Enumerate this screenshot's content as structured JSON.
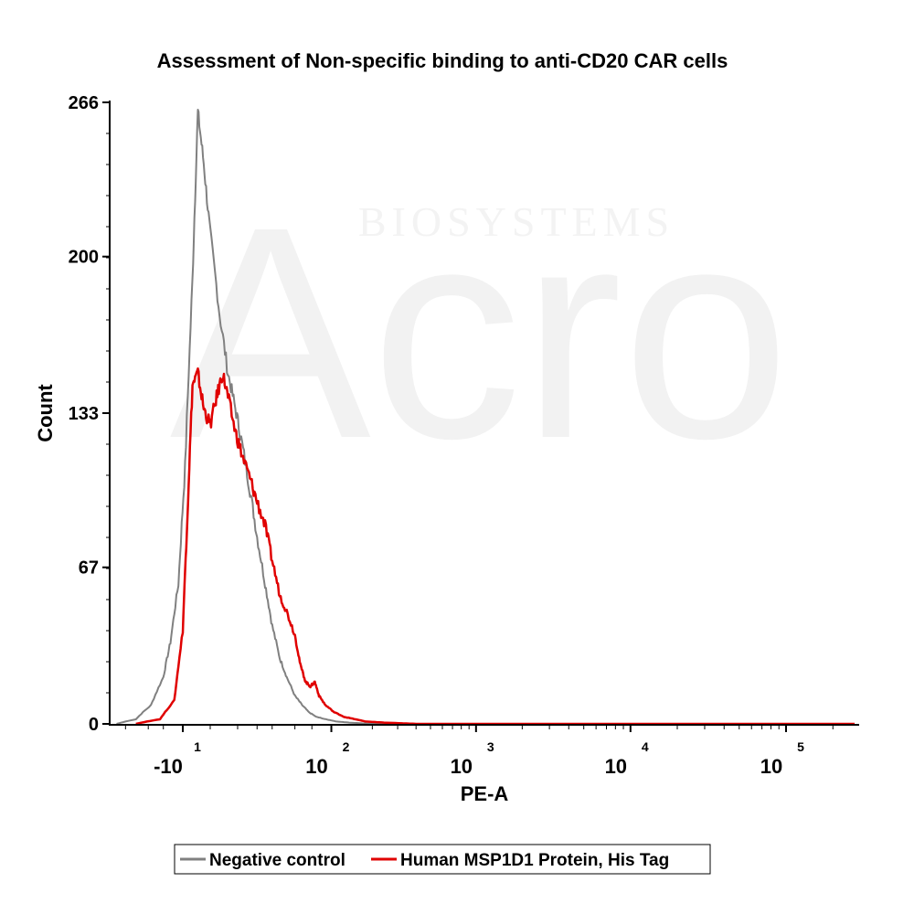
{
  "chart_data": {
    "type": "line",
    "title": "Assessment of Non-specific binding to anti-CD20 CAR cells",
    "xlabel": "PE-A",
    "ylabel": "Count",
    "x_scale": "biexponential",
    "ylim": [
      0,
      266
    ],
    "yticks": [
      {
        "value": 0,
        "label": "0"
      },
      {
        "value": 67,
        "label": "67"
      },
      {
        "value": 133,
        "label": "133"
      },
      {
        "value": 200,
        "label": "200"
      },
      {
        "value": 266,
        "label": "266"
      }
    ],
    "xticks": [
      {
        "value": -10,
        "base": "-10",
        "exp": "1"
      },
      {
        "value": 100,
        "base": "10",
        "exp": "2"
      },
      {
        "value": 1000,
        "base": "10",
        "exp": "3"
      },
      {
        "value": 10000,
        "base": "10",
        "exp": "4"
      },
      {
        "value": 100000,
        "base": "10",
        "exp": "5"
      }
    ],
    "grid": false,
    "legend_position": "bottom",
    "series": [
      {
        "name": "Negative control",
        "color": "#808080",
        "points": [
          [
            -60,
            0
          ],
          [
            -40,
            2
          ],
          [
            -28,
            8
          ],
          [
            -20,
            20
          ],
          [
            -16,
            35
          ],
          [
            -12,
            60
          ],
          [
            -9,
            110
          ],
          [
            -6,
            190
          ],
          [
            -4,
            262
          ],
          [
            -2,
            240
          ],
          [
            0,
            210
          ],
          [
            3,
            175
          ],
          [
            6,
            150
          ],
          [
            9,
            135
          ],
          [
            12,
            120
          ],
          [
            16,
            100
          ],
          [
            20,
            80
          ],
          [
            25,
            60
          ],
          [
            30,
            42
          ],
          [
            36,
            28
          ],
          [
            42,
            20
          ],
          [
            50,
            12
          ],
          [
            58,
            8
          ],
          [
            66,
            5
          ],
          [
            76,
            3
          ],
          [
            90,
            2
          ],
          [
            110,
            1
          ],
          [
            140,
            0.5
          ],
          [
            200,
            0
          ]
        ]
      },
      {
        "name": "Human MSP1D1 Protein, His Tag",
        "color": "#e00000",
        "points": [
          [
            -40,
            0
          ],
          [
            -22,
            2
          ],
          [
            -14,
            10
          ],
          [
            -10,
            40
          ],
          [
            -8,
            90
          ],
          [
            -6,
            145
          ],
          [
            -4,
            150
          ],
          [
            -2,
            135
          ],
          [
            0,
            128
          ],
          [
            2,
            140
          ],
          [
            4,
            150
          ],
          [
            6,
            140
          ],
          [
            9,
            125
          ],
          [
            12,
            115
          ],
          [
            16,
            105
          ],
          [
            20,
            95
          ],
          [
            25,
            85
          ],
          [
            30,
            70
          ],
          [
            36,
            55
          ],
          [
            42,
            48
          ],
          [
            50,
            38
          ],
          [
            56,
            25
          ],
          [
            62,
            18
          ],
          [
            68,
            16
          ],
          [
            74,
            18
          ],
          [
            80,
            12
          ],
          [
            90,
            8
          ],
          [
            105,
            5
          ],
          [
            125,
            3
          ],
          [
            150,
            2
          ],
          [
            180,
            1
          ],
          [
            250,
            0.5
          ],
          [
            400,
            0
          ]
        ]
      }
    ]
  },
  "watermark": {
    "brand": "Acro",
    "sub": "BIOSYSTEMS"
  }
}
